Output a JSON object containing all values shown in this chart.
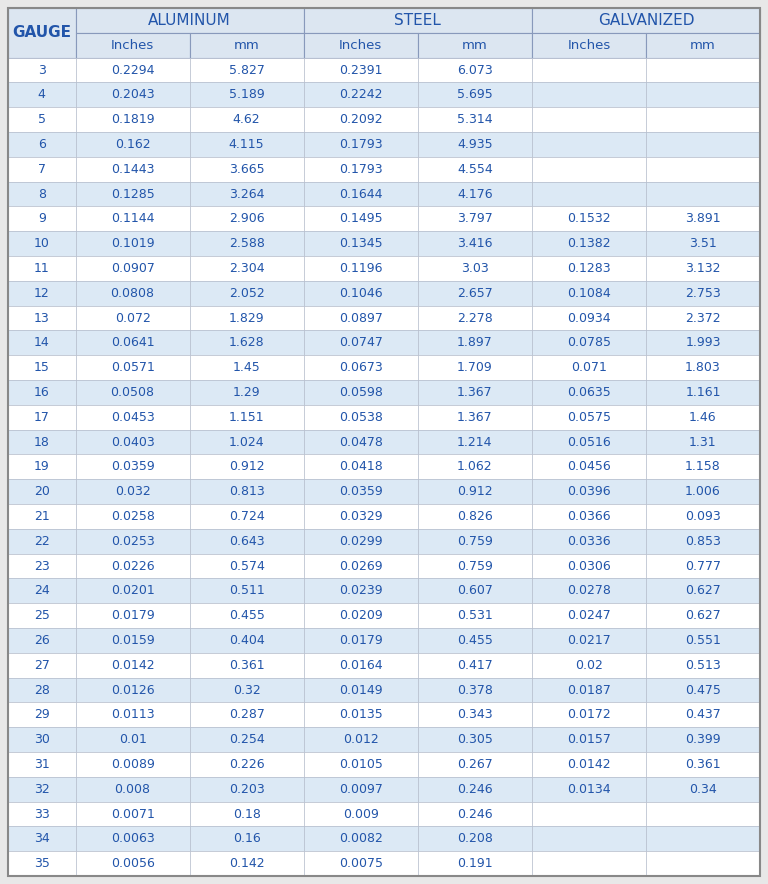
{
  "rows": [
    [
      "3",
      "0.2294",
      "5.827",
      "0.2391",
      "6.073",
      "",
      ""
    ],
    [
      "4",
      "0.2043",
      "5.189",
      "0.2242",
      "5.695",
      "",
      ""
    ],
    [
      "5",
      "0.1819",
      "4.62",
      "0.2092",
      "5.314",
      "",
      ""
    ],
    [
      "6",
      "0.162",
      "4.115",
      "0.1793",
      "4.935",
      "",
      ""
    ],
    [
      "7",
      "0.1443",
      "3.665",
      "0.1793",
      "4.554",
      "",
      ""
    ],
    [
      "8",
      "0.1285",
      "3.264",
      "0.1644",
      "4.176",
      "",
      ""
    ],
    [
      "9",
      "0.1144",
      "2.906",
      "0.1495",
      "3.797",
      "0.1532",
      "3.891"
    ],
    [
      "10",
      "0.1019",
      "2.588",
      "0.1345",
      "3.416",
      "0.1382",
      "3.51"
    ],
    [
      "11",
      "0.0907",
      "2.304",
      "0.1196",
      "3.03",
      "0.1283",
      "3.132"
    ],
    [
      "12",
      "0.0808",
      "2.052",
      "0.1046",
      "2.657",
      "0.1084",
      "2.753"
    ],
    [
      "13",
      "0.072",
      "1.829",
      "0.0897",
      "2.278",
      "0.0934",
      "2.372"
    ],
    [
      "14",
      "0.0641",
      "1.628",
      "0.0747",
      "1.897",
      "0.0785",
      "1.993"
    ],
    [
      "15",
      "0.0571",
      "1.45",
      "0.0673",
      "1.709",
      "0.071",
      "1.803"
    ],
    [
      "16",
      "0.0508",
      "1.29",
      "0.0598",
      "1.367",
      "0.0635",
      "1.161"
    ],
    [
      "17",
      "0.0453",
      "1.151",
      "0.0538",
      "1.367",
      "0.0575",
      "1.46"
    ],
    [
      "18",
      "0.0403",
      "1.024",
      "0.0478",
      "1.214",
      "0.0516",
      "1.31"
    ],
    [
      "19",
      "0.0359",
      "0.912",
      "0.0418",
      "1.062",
      "0.0456",
      "1.158"
    ],
    [
      "20",
      "0.032",
      "0.813",
      "0.0359",
      "0.912",
      "0.0396",
      "1.006"
    ],
    [
      "21",
      "0.0258",
      "0.724",
      "0.0329",
      "0.826",
      "0.0366",
      "0.093"
    ],
    [
      "22",
      "0.0253",
      "0.643",
      "0.0299",
      "0.759",
      "0.0336",
      "0.853"
    ],
    [
      "23",
      "0.0226",
      "0.574",
      "0.0269",
      "0.759",
      "0.0306",
      "0.777"
    ],
    [
      "24",
      "0.0201",
      "0.511",
      "0.0239",
      "0.607",
      "0.0278",
      "0.627"
    ],
    [
      "25",
      "0.0179",
      "0.455",
      "0.0209",
      "0.531",
      "0.0247",
      "0.627"
    ],
    [
      "26",
      "0.0159",
      "0.404",
      "0.0179",
      "0.455",
      "0.0217",
      "0.551"
    ],
    [
      "27",
      "0.0142",
      "0.361",
      "0.0164",
      "0.417",
      "0.02",
      "0.513"
    ],
    [
      "28",
      "0.0126",
      "0.32",
      "0.0149",
      "0.378",
      "0.0187",
      "0.475"
    ],
    [
      "29",
      "0.0113",
      "0.287",
      "0.0135",
      "0.343",
      "0.0172",
      "0.437"
    ],
    [
      "30",
      "0.01",
      "0.254",
      "0.012",
      "0.305",
      "0.0157",
      "0.399"
    ],
    [
      "31",
      "0.0089",
      "0.226",
      "0.0105",
      "0.267",
      "0.0142",
      "0.361"
    ],
    [
      "32",
      "0.008",
      "0.203",
      "0.0097",
      "0.246",
      "0.0134",
      "0.34"
    ],
    [
      "33",
      "0.0071",
      "0.18",
      "0.009",
      "0.246",
      "",
      ""
    ],
    [
      "34",
      "0.0063",
      "0.16",
      "0.0082",
      "0.208",
      "",
      ""
    ],
    [
      "35",
      "0.0056",
      "0.142",
      "0.0075",
      "0.191",
      "",
      ""
    ]
  ],
  "fig_bg": "#e8e8e8",
  "header_bg": "#dce6f1",
  "row_bg_odd": "#ffffff",
  "row_bg_even": "#dce9f5",
  "text_color": "#2255aa",
  "border_color": "#b0b8c8",
  "header_border_color": "#8899bb",
  "figsize": [
    7.68,
    8.84
  ],
  "dpi": 100,
  "font_size_header": 11,
  "font_size_subheader": 9.5,
  "font_size_data": 9.0
}
